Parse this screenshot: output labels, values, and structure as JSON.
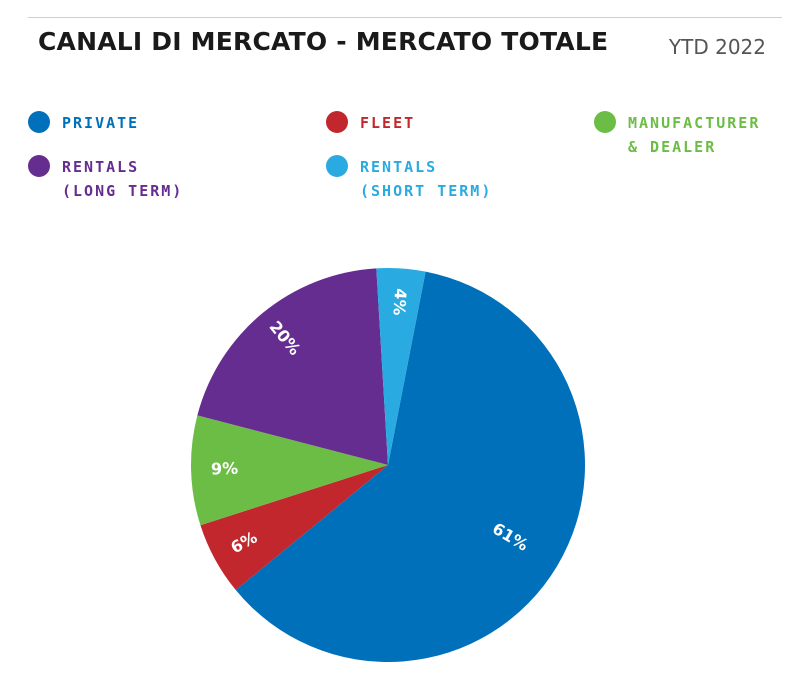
{
  "header": {
    "title": "CANALI DI MERCATO - MERCATO TOTALE",
    "period": "YTD 2022"
  },
  "legend": [
    {
      "lines": [
        "PRIVATE"
      ],
      "color": "#0070bb"
    },
    {
      "lines": [
        "FLEET"
      ],
      "color": "#c1272d"
    },
    {
      "lines": [
        "MANUFACTURER",
        "& DEALER"
      ],
      "color": "#6cbd45"
    },
    {
      "lines": [
        "RENTALS",
        "(LONG TERM)"
      ],
      "color": "#662d91"
    },
    {
      "lines": [
        "RENTALS",
        "(SHORT TERM)"
      ],
      "color": "#29abe2"
    }
  ],
  "chart_data": {
    "type": "pie",
    "title": "CANALI DI MERCATO - MERCATO TOTALE",
    "subtitle": "YTD 2022",
    "slices": [
      {
        "name": "PRIVATE",
        "value": 61,
        "label": "61%",
        "color": "#0070bb"
      },
      {
        "name": "FLEET",
        "value": 6,
        "label": "6%",
        "color": "#c1272d"
      },
      {
        "name": "MANUFACTURER & DEALER",
        "value": 9,
        "label": "9%",
        "color": "#6cbd45"
      },
      {
        "name": "RENTALS (LONG TERM)",
        "value": 20,
        "label": "20%",
        "color": "#662d91"
      },
      {
        "name": "RENTALS (SHORT TERM)",
        "value": 4,
        "label": "4%",
        "color": "#29abe2"
      }
    ],
    "legend_position": "top"
  }
}
